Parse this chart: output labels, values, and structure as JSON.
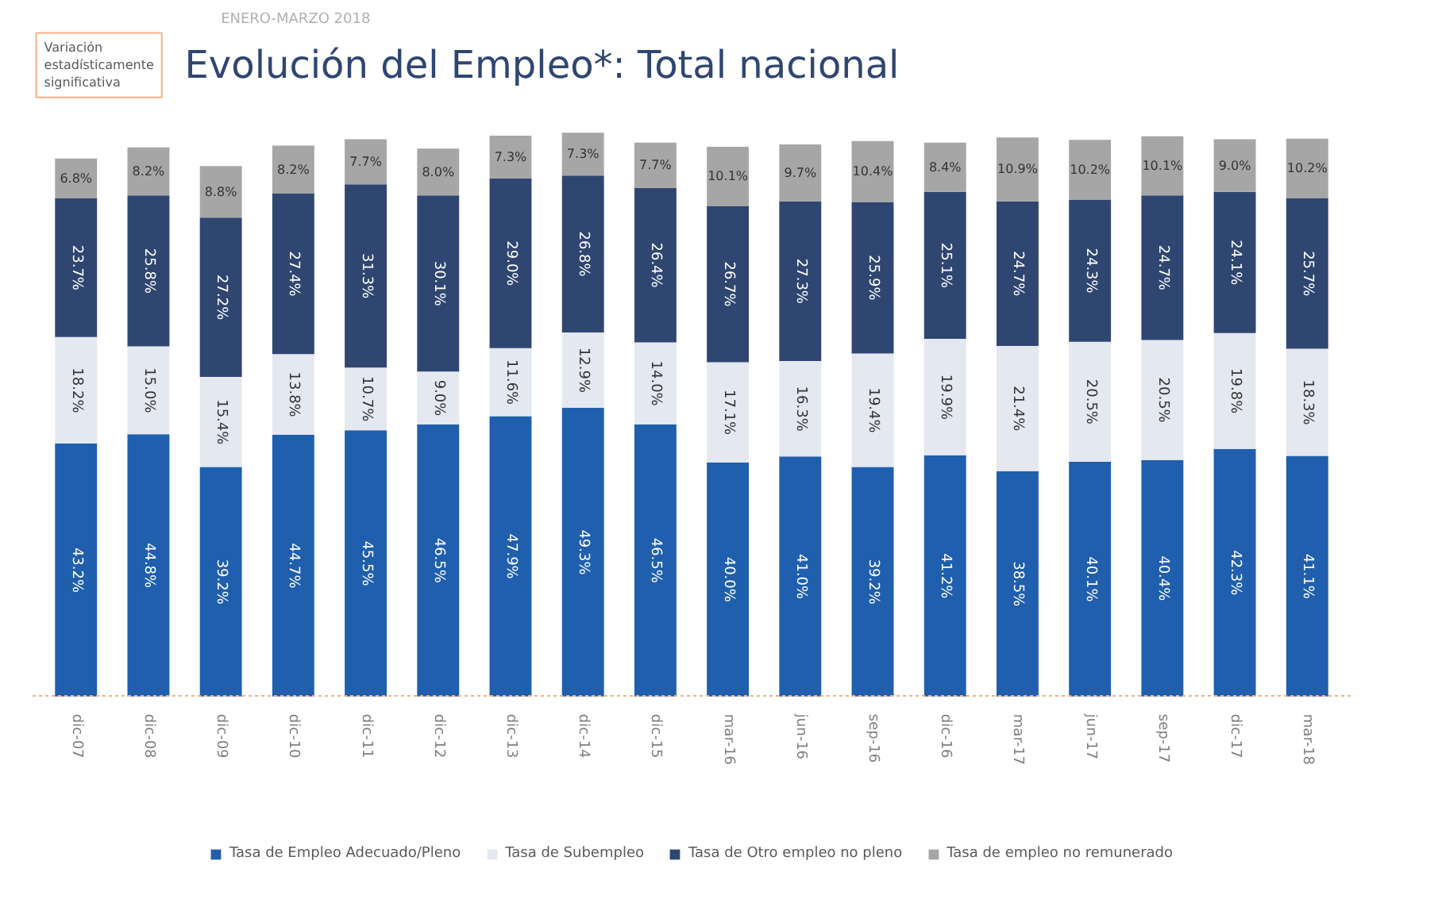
{
  "chart_data": {
    "type": "bar",
    "stacked": true,
    "legend": "bottom",
    "title": "Evolución del Empleo*: Total nacional",
    "subtitle": "ENERO-MARZO 2018",
    "annotations": [
      "Variación estadísticamente significativa"
    ],
    "categories": [
      "dic-07",
      "dic-08",
      "dic-09",
      "dic-10",
      "dic-11",
      "dic-12",
      "dic-13",
      "dic-14",
      "dic-15",
      "mar-16",
      "jun-16",
      "sep-16",
      "dic-16",
      "mar-17",
      "jun-17",
      "sep-17",
      "dic-17",
      "mar-18"
    ],
    "series": [
      {
        "name": "Tasa de Empleo Adecuado/Pleno",
        "color": "#1f5fad",
        "values": [
          43.2,
          44.8,
          39.2,
          44.7,
          45.5,
          46.5,
          47.9,
          49.3,
          46.5,
          40.0,
          41.0,
          39.2,
          41.2,
          38.5,
          40.1,
          40.4,
          42.3,
          41.1
        ],
        "value_labels": [
          "43.2%",
          "44.8%",
          "39.2%",
          "44.7%",
          "45.5%",
          "46.5%",
          "47.9%",
          "49.3%",
          "46.5%",
          "40.0%",
          "41.0%",
          "39.2%",
          "41.2%",
          "38.5%",
          "40.1%",
          "40.4%",
          "42.3%",
          "41.1%"
        ]
      },
      {
        "name": "Tasa de Subempleo",
        "color": "#e4e8f0",
        "values": [
          18.2,
          15.0,
          15.4,
          13.8,
          10.7,
          9.0,
          11.6,
          12.9,
          14.0,
          17.1,
          16.3,
          19.4,
          19.9,
          21.4,
          20.5,
          20.5,
          19.8,
          18.3
        ],
        "value_labels": [
          "18.2%",
          "15.0%",
          "15.4%",
          "13.8%",
          "10.7%",
          "9.0%",
          "11.6%",
          "12.9%",
          "14.0%",
          "17.1%",
          "16.3%",
          "19.4%",
          "19.9%",
          "21.4%",
          "20.5%",
          "20.5%",
          "19.8%",
          "18.3%"
        ]
      },
      {
        "name": "Tasa de Otro empleo no pleno",
        "color": "#2f4670",
        "values": [
          23.7,
          25.8,
          27.2,
          27.4,
          31.3,
          30.1,
          29.0,
          26.8,
          26.4,
          26.7,
          27.3,
          25.9,
          25.1,
          24.7,
          24.3,
          24.7,
          24.1,
          25.7
        ],
        "value_labels": [
          "23.7%",
          "25.8%",
          "27.2%",
          "27.4%",
          "31.3%",
          "30.1%",
          "29.0%",
          "26.8%",
          "26.4%",
          "26.7%",
          "27.3%",
          "25.9%",
          "25.1%",
          "24.7%",
          "24.3%",
          "24.7%",
          "24.1%",
          "25.7%"
        ]
      },
      {
        "name": "Tasa de empleo no remunerado",
        "color": "#a6a6a6",
        "values": [
          6.8,
          8.2,
          8.8,
          8.2,
          7.7,
          8.0,
          7.3,
          7.3,
          7.7,
          10.1,
          9.7,
          10.4,
          8.4,
          10.9,
          10.2,
          10.1,
          9.0,
          10.2
        ],
        "value_labels": [
          "6.8%",
          "8.2%",
          "8.8%",
          "8.2%",
          "7.7%",
          "8.0%",
          "7.3%",
          "7.3%",
          "7.7%",
          "10.1%",
          "9.7%",
          "10.4%",
          "8.4%",
          "10.9%",
          "10.2%",
          "10.1%",
          "9.0%",
          "10.2%"
        ]
      }
    ]
  }
}
